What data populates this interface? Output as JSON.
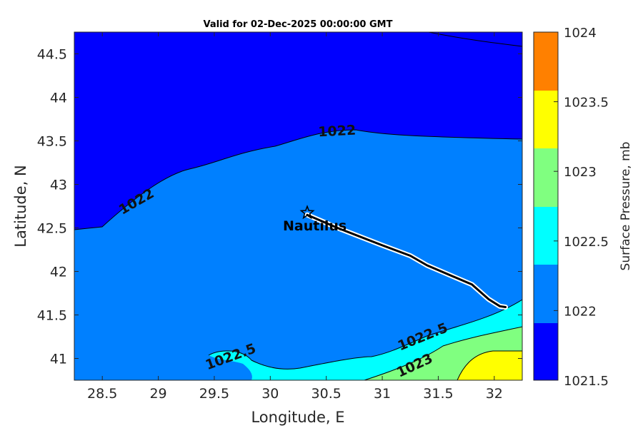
{
  "title": "Valid for 02-Dec-2025 00:00:00 GMT",
  "xlabel": "Longitude, E",
  "ylabel": "Latitude, N",
  "colorbar_label": "Surface Pressure, mb",
  "x_ticks": [
    "28.5",
    "29",
    "29.5",
    "30",
    "30.5",
    "31",
    "31.5",
    "32"
  ],
  "y_ticks": [
    "44.5",
    "44",
    "43.5",
    "43",
    "42.5",
    "42",
    "41.5",
    "41"
  ],
  "colorbar_ticks": [
    "1024",
    "1023.5",
    "1023",
    "1022.5",
    "1022",
    "1021.5"
  ],
  "contour_labels": {
    "c1022_top": "1022",
    "c1022_left": "1022",
    "c1022_5_left": "1022.5",
    "c1022_5_right": "1022.5",
    "c1023": "1023"
  },
  "ship_label": "Nautilus",
  "colors": {
    "level_1021_5": "#0000ff",
    "level_1022": "#0080ff",
    "level_1022_5": "#00ffff",
    "level_1023": "#80ff80",
    "level_1023_5": "#ffff00",
    "level_1024": "#ff8000"
  },
  "chart_data": {
    "type": "contour-map",
    "xlim": [
      28.25,
      32.25
    ],
    "ylim": [
      40.75,
      44.75
    ],
    "color_levels": [
      1021.5,
      1022,
      1022.5,
      1023,
      1023.5,
      1024
    ],
    "track": {
      "name": "Nautilus",
      "points": [
        [
          30.33,
          42.65
        ],
        [
          30.6,
          42.5
        ],
        [
          31.0,
          42.3
        ],
        [
          31.25,
          42.18
        ],
        [
          31.4,
          42.07
        ],
        [
          31.8,
          41.85
        ],
        [
          31.95,
          41.68
        ],
        [
          32.05,
          41.6
        ],
        [
          32.1,
          41.59
        ]
      ]
    }
  }
}
